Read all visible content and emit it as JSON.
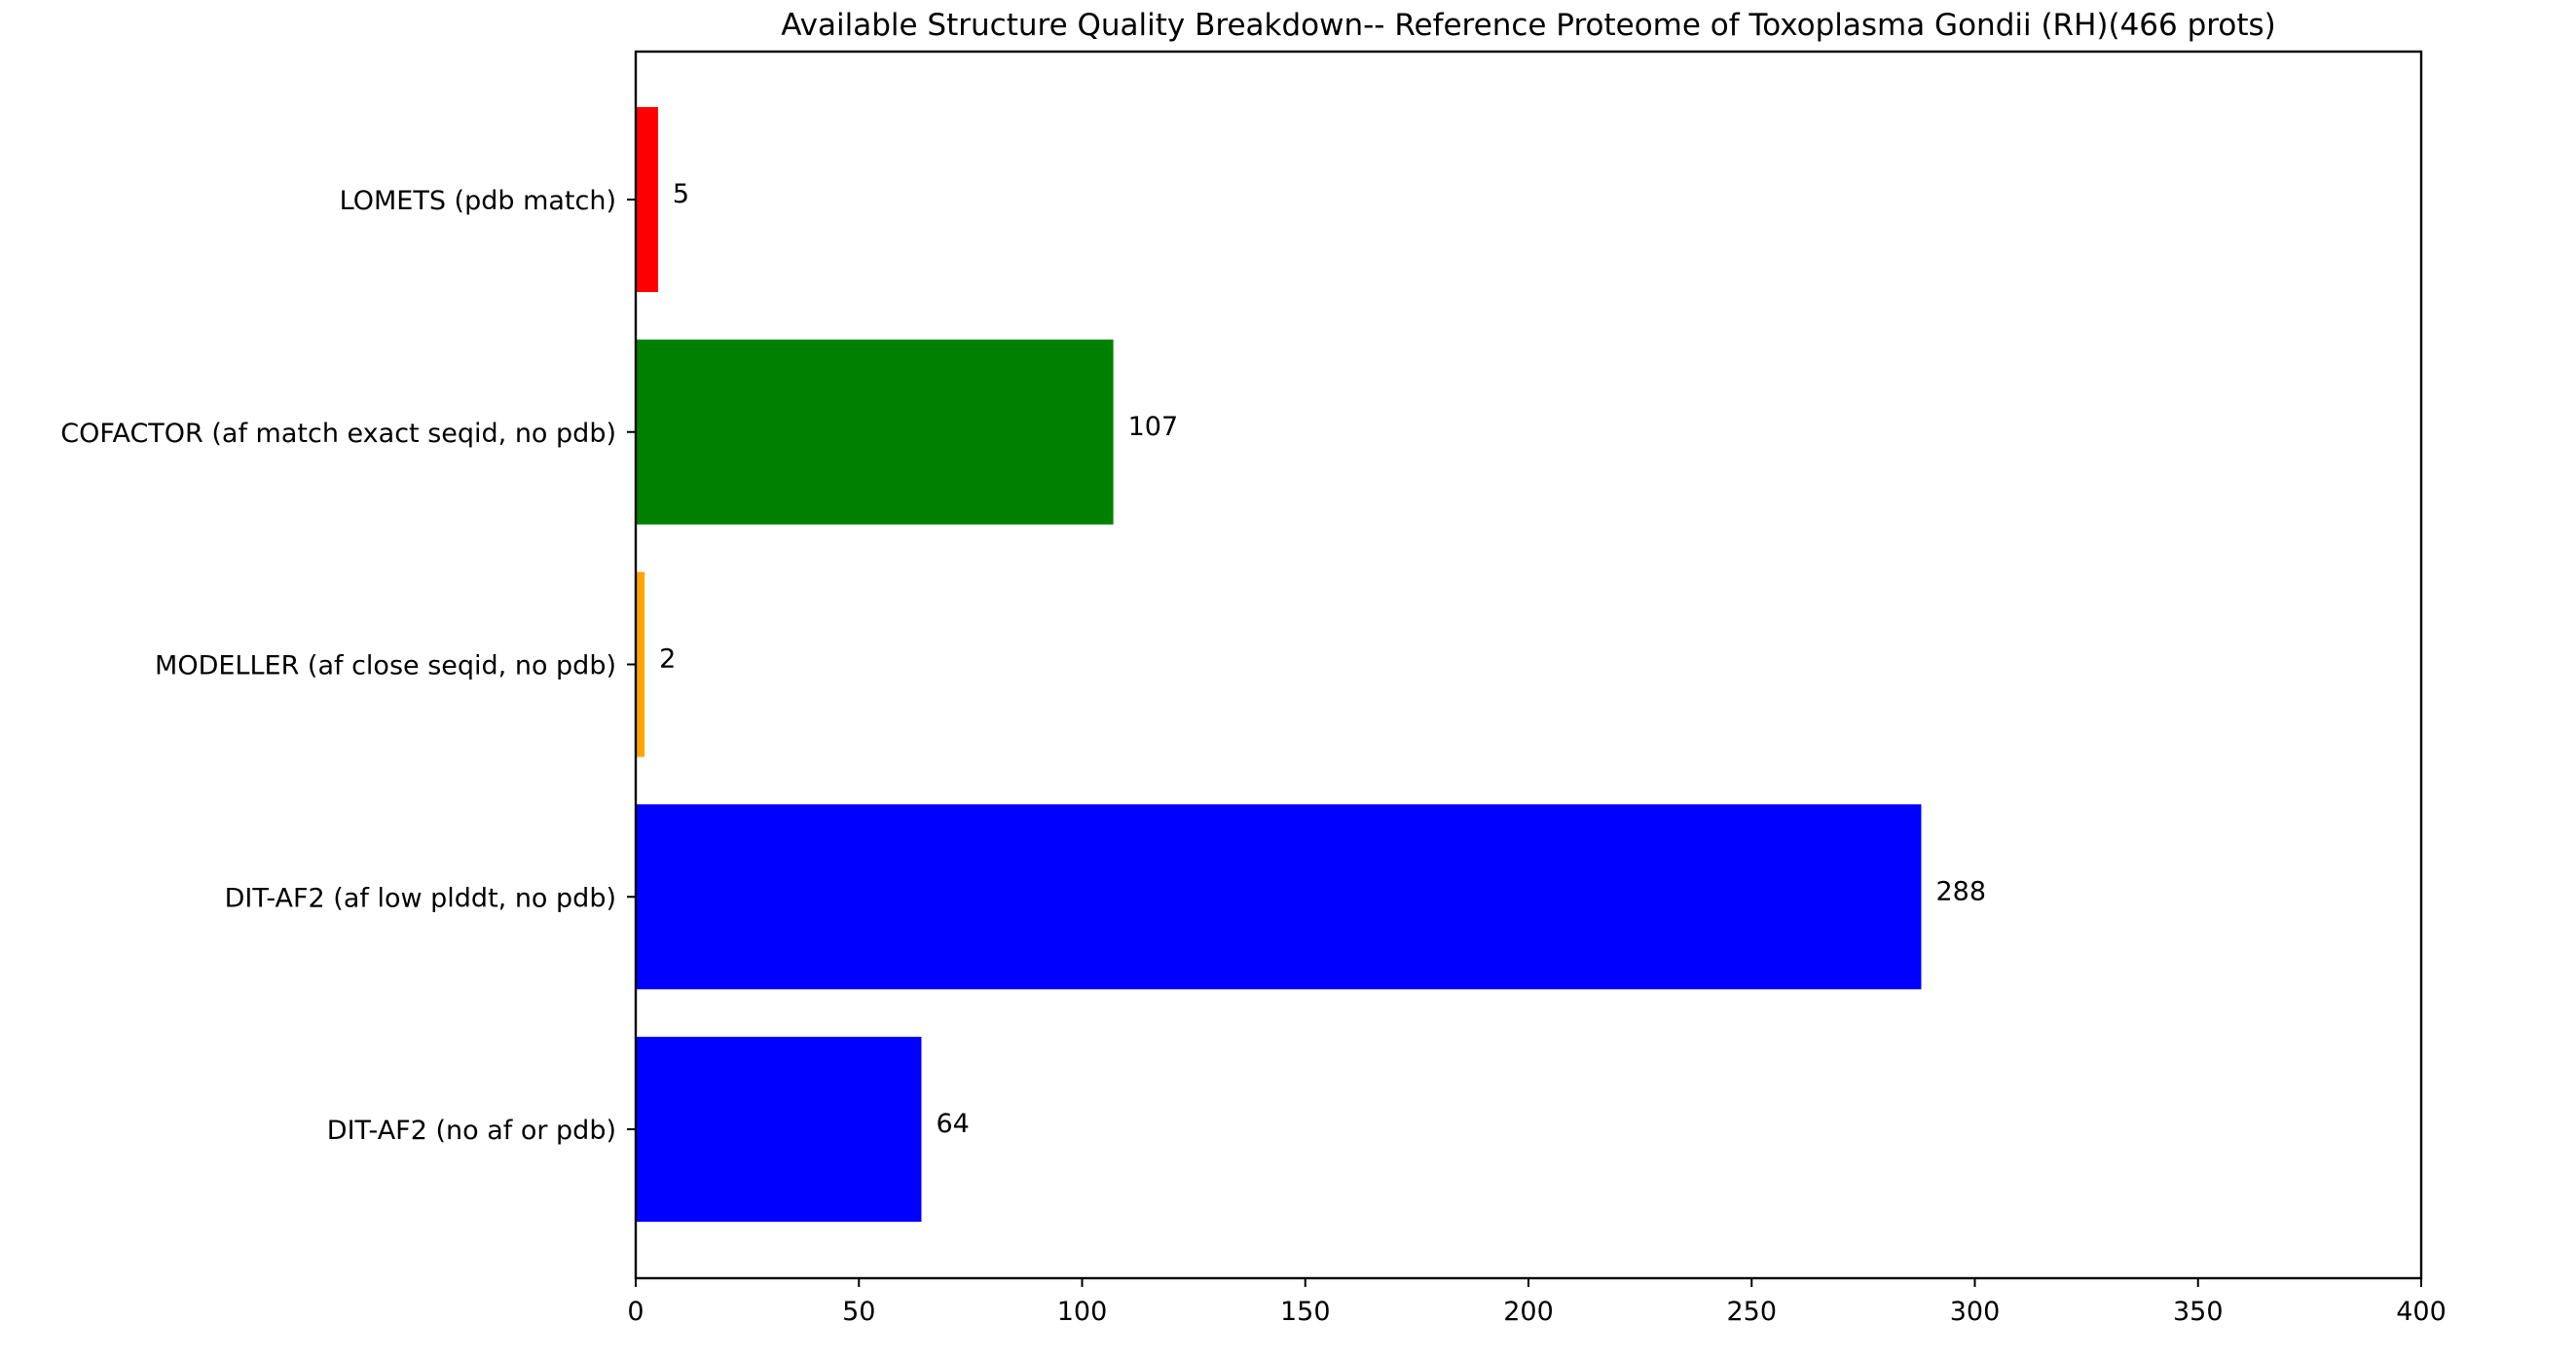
{
  "chart_data": {
    "type": "bar",
    "orientation": "horizontal",
    "title": "Available Structure Quality Breakdown-- Reference Proteome of Toxoplasma Gondii (RH)(466 prots)",
    "xlabel": "",
    "ylabel": "",
    "xlim": [
      0,
      400
    ],
    "xticks": [
      0,
      50,
      100,
      150,
      200,
      250,
      300,
      350,
      400
    ],
    "grid": false,
    "categories": [
      "LOMETS (pdb match)",
      "COFACTOR (af match exact seqid, no pdb)",
      "MODELLER (af close seqid, no pdb)",
      "DIT-AF2 (af low plddt, no pdb)",
      "DIT-AF2 (no af or pdb)"
    ],
    "values": [
      5,
      107,
      2,
      288,
      64
    ],
    "colors": [
      "#ff0000",
      "#008000",
      "#ffa500",
      "#0000ff",
      "#0000ff"
    ],
    "data_labels": [
      "5",
      "107",
      "2",
      "288",
      "64"
    ]
  }
}
